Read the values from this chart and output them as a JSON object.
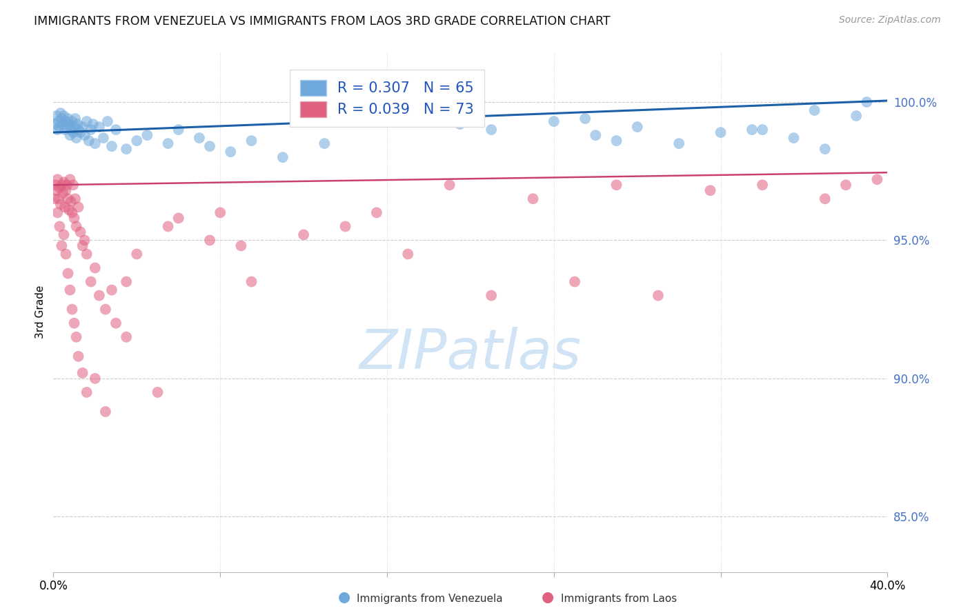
{
  "title": "IMMIGRANTS FROM VENEZUELA VS IMMIGRANTS FROM LAOS 3RD GRADE CORRELATION CHART",
  "source": "Source: ZipAtlas.com",
  "ylabel": "3rd Grade",
  "y_ticks": [
    85.0,
    90.0,
    95.0,
    100.0
  ],
  "xlim": [
    0.0,
    40.0
  ],
  "ylim": [
    83.0,
    101.8
  ],
  "legend_blue_r": "R = 0.307",
  "legend_blue_n": "N = 65",
  "legend_pink_r": "R = 0.039",
  "legend_pink_n": "N = 73",
  "blue_color": "#6fa8dc",
  "pink_color": "#e06080",
  "blue_line_color": "#1a5fa8",
  "pink_line_color": "#c94070",
  "tick_color": "#4472c4",
  "watermark_color": "#d0e4f5",
  "blue_line_y0": 98.9,
  "blue_line_y1": 100.05,
  "pink_line_y0": 97.0,
  "pink_line_y1": 97.45,
  "blue_x": [
    0.1,
    0.15,
    0.2,
    0.25,
    0.3,
    0.35,
    0.4,
    0.45,
    0.5,
    0.55,
    0.6,
    0.65,
    0.7,
    0.75,
    0.8,
    0.85,
    0.9,
    0.95,
    1.0,
    1.05,
    1.1,
    1.15,
    1.2,
    1.3,
    1.4,
    1.5,
    1.6,
    1.7,
    1.8,
    1.9,
    2.0,
    2.2,
    2.4,
    2.6,
    2.8,
    3.0,
    3.5,
    4.0,
    4.5,
    5.5,
    6.0,
    7.0,
    7.5,
    8.5,
    9.5,
    11.0,
    13.0,
    18.0,
    20.0,
    21.0,
    24.0,
    26.0,
    28.0,
    30.0,
    33.5,
    35.5,
    37.0,
    38.5,
    19.5,
    25.5,
    27.0,
    32.0,
    34.0,
    36.5,
    39.0
  ],
  "blue_y": [
    99.2,
    99.5,
    99.0,
    99.3,
    99.1,
    99.6,
    99.4,
    99.2,
    99.5,
    99.0,
    99.3,
    99.1,
    99.4,
    99.2,
    98.8,
    99.0,
    99.3,
    98.9,
    99.1,
    99.4,
    98.7,
    99.2,
    99.0,
    98.9,
    99.1,
    98.8,
    99.3,
    98.6,
    99.0,
    99.2,
    98.5,
    99.1,
    98.7,
    99.3,
    98.4,
    99.0,
    98.3,
    98.6,
    98.8,
    98.5,
    99.0,
    98.7,
    98.4,
    98.2,
    98.6,
    98.0,
    98.5,
    99.8,
    99.5,
    99.0,
    99.3,
    98.8,
    99.1,
    98.5,
    99.0,
    98.7,
    98.3,
    99.5,
    99.2,
    99.4,
    98.6,
    98.9,
    99.0,
    99.7,
    100.0
  ],
  "pink_x": [
    0.05,
    0.1,
    0.15,
    0.2,
    0.25,
    0.3,
    0.35,
    0.4,
    0.45,
    0.5,
    0.55,
    0.6,
    0.65,
    0.7,
    0.75,
    0.8,
    0.85,
    0.9,
    0.95,
    1.0,
    1.05,
    1.1,
    1.2,
    1.3,
    1.4,
    1.5,
    1.6,
    1.8,
    2.0,
    2.2,
    2.5,
    2.8,
    3.0,
    3.5,
    4.0,
    5.5,
    6.0,
    7.5,
    8.0,
    9.0,
    9.5,
    12.0,
    14.0,
    15.5,
    17.0,
    19.0,
    21.0,
    23.0,
    25.0,
    27.0,
    29.0,
    31.5,
    34.0,
    37.0,
    39.5,
    0.2,
    0.3,
    0.4,
    0.5,
    0.6,
    0.7,
    0.8,
    0.9,
    1.0,
    1.1,
    1.2,
    1.4,
    1.6,
    2.0,
    2.5,
    3.5,
    5.0,
    38.0
  ],
  "pink_y": [
    96.5,
    97.0,
    96.8,
    97.2,
    96.5,
    96.9,
    96.3,
    97.0,
    96.7,
    97.1,
    96.2,
    96.8,
    97.0,
    96.5,
    96.1,
    97.2,
    96.4,
    96.0,
    97.0,
    95.8,
    96.5,
    95.5,
    96.2,
    95.3,
    94.8,
    95.0,
    94.5,
    93.5,
    94.0,
    93.0,
    92.5,
    93.2,
    92.0,
    91.5,
    94.5,
    95.5,
    95.8,
    95.0,
    96.0,
    94.8,
    93.5,
    95.2,
    95.5,
    96.0,
    94.5,
    97.0,
    93.0,
    96.5,
    93.5,
    97.0,
    93.0,
    96.8,
    97.0,
    96.5,
    97.2,
    96.0,
    95.5,
    94.8,
    95.2,
    94.5,
    93.8,
    93.2,
    92.5,
    92.0,
    91.5,
    90.8,
    90.2,
    89.5,
    90.0,
    88.8,
    93.5,
    89.5,
    97.0
  ]
}
